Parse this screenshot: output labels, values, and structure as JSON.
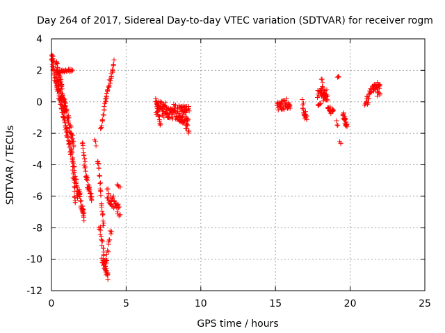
{
  "chart_data": {
    "type": "scatter",
    "title": "Day 264 of 2017, Sidereal Day-to-day VTEC variation (SDTVAR) for receiver rogm",
    "xlabel": "GPS time / hours",
    "ylabel": "SDTVAR / TECUs",
    "xlim": [
      0,
      25
    ],
    "ylim": [
      -12,
      4
    ],
    "xticks": [
      0,
      5,
      10,
      15,
      20,
      25
    ],
    "xtick_labels": [
      "0",
      "5",
      "10",
      "15",
      "20",
      "25"
    ],
    "yticks": [
      4,
      2,
      0,
      -2,
      -4,
      -6,
      -8,
      -10,
      -12
    ],
    "ytick_labels": [
      "4",
      "2",
      "0",
      "-2",
      "-4",
      "-6",
      "-8",
      "-10",
      "-12"
    ],
    "grid": true,
    "marker": "+",
    "color": "#ff0000",
    "segments": [
      {
        "x0": 0.0,
        "x1": 0.15,
        "y0": 2.9,
        "y1": 2.7,
        "n": 14,
        "jitter": 0.2
      },
      {
        "x0": 0.05,
        "x1": 1.4,
        "y0": 2.5,
        "y1": -3.6,
        "n": 90,
        "jitter": 0.3
      },
      {
        "x0": 0.3,
        "x1": 1.5,
        "y0": 2.6,
        "y1": -2.8,
        "n": 80,
        "jitter": 0.3
      },
      {
        "x0": 0.3,
        "x1": 1.4,
        "y0": 1.9,
        "y1": 2.0,
        "n": 28,
        "jitter": 0.1
      },
      {
        "x0": 0.3,
        "x1": 0.9,
        "y0": 1.7,
        "y1": -0.5,
        "n": 25,
        "jitter": 0.3
      },
      {
        "x0": 1.4,
        "x1": 1.6,
        "y0": -3.5,
        "y1": -6.6,
        "n": 20,
        "jitter": 0.2
      },
      {
        "x0": 1.5,
        "x1": 1.75,
        "y0": -4.0,
        "y1": -6.0,
        "n": 18,
        "jitter": 0.3
      },
      {
        "x0": 1.75,
        "x1": 2.2,
        "y0": -5.5,
        "y1": -7.3,
        "n": 35,
        "jitter": 0.4
      },
      {
        "x0": 2.05,
        "x1": 2.3,
        "y0": -2.5,
        "y1": -4.5,
        "n": 15,
        "jitter": 0.3
      },
      {
        "x0": 2.3,
        "x1": 2.7,
        "y0": -4.8,
        "y1": -6.1,
        "n": 28,
        "jitter": 0.3
      },
      {
        "x0": 2.9,
        "x1": 3.0,
        "y0": -2.5,
        "y1": -2.7,
        "n": 3,
        "jitter": 0.1
      },
      {
        "x0": 3.1,
        "x1": 3.5,
        "y0": -3.6,
        "y1": -8.0,
        "n": 26,
        "jitter": 0.3
      },
      {
        "x0": 3.2,
        "x1": 3.7,
        "y0": -8.0,
        "y1": -10.5,
        "n": 22,
        "jitter": 0.3
      },
      {
        "x0": 3.4,
        "x1": 3.8,
        "y0": -10.0,
        "y1": -11.2,
        "n": 24,
        "jitter": 0.2
      },
      {
        "x0": 3.6,
        "x1": 4.0,
        "y0": -10.5,
        "y1": -8.0,
        "n": 14,
        "jitter": 0.3
      },
      {
        "x0": 3.3,
        "x1": 3.6,
        "y0": -1.8,
        "y1": 0.0,
        "n": 14,
        "jitter": 0.2
      },
      {
        "x0": 3.6,
        "x1": 4.2,
        "y0": 0.0,
        "y1": 2.5,
        "n": 30,
        "jitter": 0.2
      },
      {
        "x0": 3.7,
        "x1": 4.6,
        "y0": -5.8,
        "y1": -7.0,
        "n": 40,
        "jitter": 0.4
      },
      {
        "x0": 4.4,
        "x1": 4.6,
        "y0": -5.2,
        "y1": -5.4,
        "n": 4,
        "jitter": 0.1
      },
      {
        "x0": 7.0,
        "x1": 9.2,
        "y0": -0.4,
        "y1": -0.8,
        "n": 140,
        "jitter": 0.5
      },
      {
        "x0": 7.0,
        "x1": 7.3,
        "y0": 0.2,
        "y1": -1.5,
        "n": 18,
        "jitter": 0.3
      },
      {
        "x0": 8.6,
        "x1": 9.2,
        "y0": -1.0,
        "y1": -1.8,
        "n": 24,
        "jitter": 0.3
      },
      {
        "x0": 15.1,
        "x1": 16.0,
        "y0": -0.3,
        "y1": -0.1,
        "n": 40,
        "jitter": 0.35
      },
      {
        "x0": 16.8,
        "x1": 17.1,
        "y0": -0.2,
        "y1": -1.2,
        "n": 22,
        "jitter": 0.35
      },
      {
        "x0": 17.8,
        "x1": 18.5,
        "y0": 0.2,
        "y1": 0.6,
        "n": 40,
        "jitter": 0.5
      },
      {
        "x0": 18.1,
        "x1": 18.3,
        "y0": 1.4,
        "y1": 0.4,
        "n": 10,
        "jitter": 0.2
      },
      {
        "x0": 18.5,
        "x1": 18.9,
        "y0": -0.4,
        "y1": -0.7,
        "n": 16,
        "jitter": 0.2
      },
      {
        "x0": 19.05,
        "x1": 19.2,
        "y0": -1.3,
        "y1": -1.5,
        "n": 3,
        "jitter": 0.1
      },
      {
        "x0": 19.15,
        "x1": 19.25,
        "y0": 1.6,
        "y1": 1.6,
        "n": 3,
        "jitter": 0.05
      },
      {
        "x0": 19.3,
        "x1": 19.4,
        "y0": -2.5,
        "y1": -2.7,
        "n": 3,
        "jitter": 0.05
      },
      {
        "x0": 19.5,
        "x1": 19.8,
        "y0": -0.8,
        "y1": -1.6,
        "n": 22,
        "jitter": 0.3
      },
      {
        "x0": 21.0,
        "x1": 21.3,
        "y0": 0.0,
        "y1": 0.3,
        "n": 14,
        "jitter": 0.3
      },
      {
        "x0": 21.3,
        "x1": 22.0,
        "y0": 0.7,
        "y1": 1.1,
        "n": 32,
        "jitter": 0.25
      },
      {
        "x0": 21.8,
        "x1": 22.0,
        "y0": 0.4,
        "y1": 0.6,
        "n": 6,
        "jitter": 0.2
      }
    ]
  }
}
